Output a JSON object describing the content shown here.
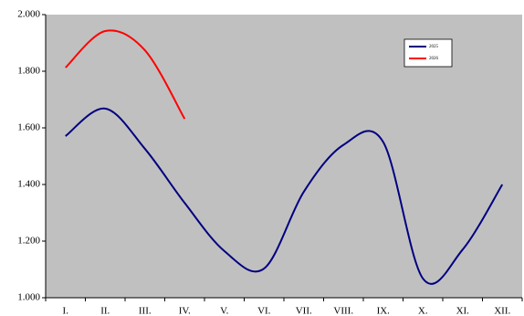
{
  "chart_data": {
    "type": "line",
    "categories": [
      "I.",
      "II.",
      "III.",
      "IV.",
      "V.",
      "VI.",
      "VII.",
      "VIII.",
      "IX.",
      "X.",
      "XI.",
      "XII."
    ],
    "series": [
      {
        "name": "2025",
        "color": "#000080",
        "values": [
          1.571,
          1.668,
          1.526,
          1.335,
          1.165,
          1.103,
          1.374,
          1.54,
          1.55,
          1.068,
          1.17,
          1.4
        ]
      },
      {
        "name": "2026",
        "color": "#ff0000",
        "values": [
          1.813,
          1.942,
          1.874,
          1.632,
          null,
          null,
          null,
          null,
          null,
          null,
          null,
          null
        ]
      }
    ],
    "ylim": [
      1.0,
      2.0
    ],
    "yticks": [
      {
        "value": 1.0,
        "label": "1.000"
      },
      {
        "value": 1.2,
        "label": "1.200"
      },
      {
        "value": 1.4,
        "label": "1.400"
      },
      {
        "value": 1.6,
        "label": "1.600"
      },
      {
        "value": 1.8,
        "label": "1.800"
      },
      {
        "value": 2.0,
        "label": "2.000"
      }
    ],
    "grid": false,
    "legend": "top-right",
    "background": "#c0c0c0"
  }
}
